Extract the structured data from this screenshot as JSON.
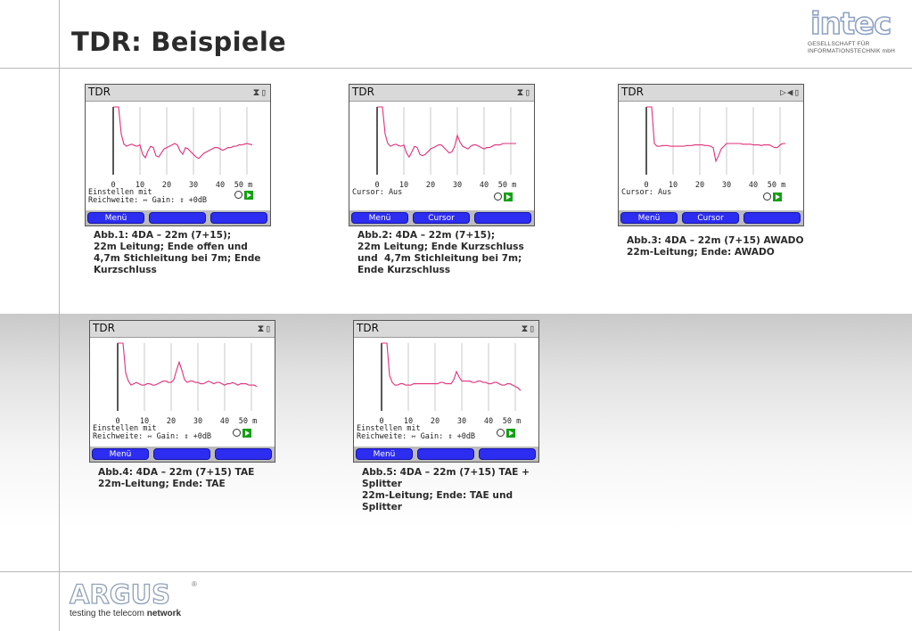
{
  "page": {
    "title": "TDR: Beispiele"
  },
  "logo_intec": {
    "word": "intec",
    "line1": "GESELLSCHAFT FÜR",
    "line2": "INFORMATIONSTECHNIK mbH"
  },
  "logo_argus": {
    "word": "ARGUS",
    "reg": "®",
    "tag_plain": "testing the telecom ",
    "tag_bold": "network"
  },
  "trace_color": "#e0307a",
  "screens": [
    {
      "title": "TDR",
      "status_icons": "⧗▯",
      "axis": [
        "0",
        "10",
        "20",
        "30",
        "40",
        "50 m"
      ],
      "info_line1": "Einstellen mit",
      "info_line2": "Reichweite: ⇿ Gain: ⇕ +0dB",
      "buttons": [
        "Menü",
        "",
        ""
      ],
      "caption": "Abb.1: 4DA – 22m (7+15);\n22m Leitung; Ende offen und\n4,7m Stichleitung bei 7m; Ende\nKurzschluss",
      "chart_data": {
        "type": "line",
        "xlabel": "",
        "xunit": "m",
        "xlim": [
          0,
          50
        ],
        "x": [
          0,
          1,
          2,
          3,
          4,
          5,
          6,
          7,
          8,
          9,
          10,
          11,
          12,
          13,
          14,
          15,
          16,
          17,
          18,
          19,
          20,
          21,
          22,
          23,
          24,
          25,
          26,
          27,
          28,
          29,
          30,
          31,
          32,
          33,
          34,
          35,
          36,
          37,
          38,
          39,
          40,
          41,
          42,
          43,
          44,
          45,
          46,
          47,
          48,
          49,
          50,
          51,
          52
        ],
        "y": [
          100,
          100,
          100,
          60,
          45,
          42,
          44,
          45,
          43,
          42,
          44,
          30,
          25,
          35,
          42,
          40,
          28,
          26,
          32,
          38,
          40,
          42,
          44,
          46,
          44,
          35,
          30,
          40,
          38,
          34,
          30,
          26,
          24,
          28,
          32,
          34,
          36,
          38,
          40,
          40,
          38,
          36,
          38,
          40,
          40,
          42,
          42,
          44,
          44,
          45,
          46,
          45,
          44
        ]
      }
    },
    {
      "title": "TDR",
      "status_icons": "⧗▯",
      "axis": [
        "0",
        "10",
        "20",
        "30",
        "40",
        "50 m"
      ],
      "info_line1": "Cursor: Aus",
      "info_line2": "",
      "buttons": [
        "Menü",
        "Cursor",
        ""
      ],
      "caption": "Abb.2: 4DA – 22m (7+15);\n22m Leitung; Ende Kurzschluss\nund  4,7m Stichleitung bei 7m;\nEnde Kurzschluss",
      "chart_data": {
        "type": "line",
        "xlabel": "",
        "xunit": "m",
        "xlim": [
          0,
          50
        ],
        "x": [
          0,
          1,
          2,
          3,
          4,
          5,
          6,
          7,
          8,
          9,
          10,
          11,
          12,
          13,
          14,
          15,
          16,
          17,
          18,
          19,
          20,
          21,
          22,
          23,
          24,
          25,
          26,
          27,
          28,
          29,
          30,
          31,
          32,
          33,
          34,
          35,
          36,
          37,
          38,
          39,
          40,
          41,
          42,
          43,
          44,
          45,
          46,
          47,
          48,
          49,
          50,
          51,
          52
        ],
        "y": [
          100,
          100,
          100,
          60,
          46,
          42,
          44,
          45,
          43,
          42,
          44,
          32,
          26,
          34,
          42,
          40,
          30,
          28,
          30,
          34,
          38,
          40,
          42,
          44,
          44,
          40,
          36,
          32,
          34,
          42,
          58,
          48,
          42,
          40,
          38,
          42,
          44,
          44,
          42,
          40,
          38,
          40,
          40,
          42,
          44,
          44,
          44,
          46,
          46,
          46,
          46,
          46,
          46
        ]
      }
    },
    {
      "title": "TDR",
      "status_icons": "▷◀▯",
      "axis": [
        "0",
        "10",
        "20",
        "30",
        "40",
        "50 m"
      ],
      "info_line1": "Cursor: Aus",
      "info_line2": "",
      "buttons": [
        "Menü",
        "Cursor",
        ""
      ],
      "caption": "Abb.3: 4DA – 22m (7+15) AWADO\n22m-Leitung; Ende: AWADO",
      "chart_data": {
        "type": "line",
        "xlabel": "",
        "xunit": "m",
        "xlim": [
          0,
          50
        ],
        "x": [
          0,
          1,
          2,
          3,
          4,
          5,
          6,
          7,
          8,
          9,
          10,
          11,
          12,
          13,
          14,
          15,
          16,
          17,
          18,
          19,
          20,
          21,
          22,
          23,
          24,
          25,
          26,
          27,
          28,
          29,
          30,
          31,
          32,
          33,
          34,
          35,
          36,
          37,
          38,
          39,
          40,
          41,
          42,
          43,
          44,
          45,
          46,
          47,
          48,
          49,
          50,
          51,
          52
        ],
        "y": [
          100,
          100,
          100,
          46,
          42,
          42,
          43,
          43,
          43,
          42,
          42,
          42,
          42,
          42,
          42,
          43,
          43,
          43,
          44,
          44,
          44,
          44,
          43,
          43,
          42,
          40,
          20,
          28,
          38,
          42,
          46,
          46,
          46,
          46,
          46,
          46,
          45,
          45,
          45,
          45,
          44,
          44,
          44,
          43,
          44,
          44,
          44,
          42,
          40,
          40,
          44,
          46,
          46
        ]
      }
    },
    {
      "title": "TDR",
      "status_icons": "⧗▯",
      "axis": [
        "0",
        "10",
        "20",
        "30",
        "40",
        "50 m"
      ],
      "info_line1": "Einstellen mit",
      "info_line2": "Reichweite: ⇿ Gain: ⇕ +0dB",
      "buttons": [
        "Menü",
        "",
        ""
      ],
      "caption": "Abb.4: 4DA – 22m (7+15) TAE\n22m-Leitung; Ende: TAE",
      "chart_data": {
        "type": "line",
        "xlabel": "",
        "xunit": "m",
        "xlim": [
          0,
          50
        ],
        "x": [
          0,
          1,
          2,
          3,
          4,
          5,
          6,
          7,
          8,
          9,
          10,
          11,
          12,
          13,
          14,
          15,
          16,
          17,
          18,
          19,
          20,
          21,
          22,
          23,
          24,
          25,
          26,
          27,
          28,
          29,
          30,
          31,
          32,
          33,
          34,
          35,
          36,
          37,
          38,
          39,
          40,
          41,
          42,
          43,
          44,
          45,
          46,
          47,
          48,
          49,
          50,
          51,
          52
        ],
        "y": [
          100,
          100,
          100,
          56,
          44,
          38,
          40,
          42,
          40,
          38,
          38,
          40,
          40,
          38,
          38,
          40,
          42,
          44,
          44,
          42,
          42,
          46,
          60,
          72,
          60,
          46,
          42,
          44,
          44,
          42,
          42,
          40,
          40,
          42,
          44,
          42,
          40,
          42,
          42,
          40,
          38,
          40,
          40,
          42,
          40,
          38,
          40,
          40,
          40,
          38,
          38,
          38,
          36
        ]
      }
    },
    {
      "title": "TDR",
      "status_icons": "⧗▯",
      "axis": [
        "0",
        "10",
        "20",
        "30",
        "40",
        "50 m"
      ],
      "info_line1": "Einstellen mit",
      "info_line2": "Reichweite: ⇿ Gain: ⇕ +0dB",
      "buttons": [
        "Menü",
        "",
        ""
      ],
      "caption": "Abb.5: 4DA – 22m (7+15) TAE +\nSplitter\n22m-Leitung; Ende: TAE und\nSplitter",
      "chart_data": {
        "type": "line",
        "xlabel": "",
        "xunit": "m",
        "xlim": [
          0,
          50
        ],
        "x": [
          0,
          1,
          2,
          3,
          4,
          5,
          6,
          7,
          8,
          9,
          10,
          11,
          12,
          13,
          14,
          15,
          16,
          17,
          18,
          19,
          20,
          21,
          22,
          23,
          24,
          25,
          26,
          27,
          28,
          29,
          30,
          31,
          32,
          33,
          34,
          35,
          36,
          37,
          38,
          39,
          40,
          41,
          42,
          43,
          44,
          45,
          46,
          47,
          48,
          49,
          50,
          51,
          52
        ],
        "y": [
          100,
          100,
          100,
          52,
          42,
          38,
          38,
          40,
          40,
          38,
          38,
          38,
          40,
          40,
          40,
          40,
          40,
          40,
          40,
          40,
          40,
          40,
          42,
          42,
          40,
          40,
          40,
          46,
          58,
          50,
          44,
          44,
          44,
          44,
          42,
          42,
          44,
          44,
          42,
          42,
          40,
          40,
          42,
          42,
          40,
          38,
          38,
          40,
          40,
          38,
          36,
          34,
          30
        ]
      }
    }
  ]
}
